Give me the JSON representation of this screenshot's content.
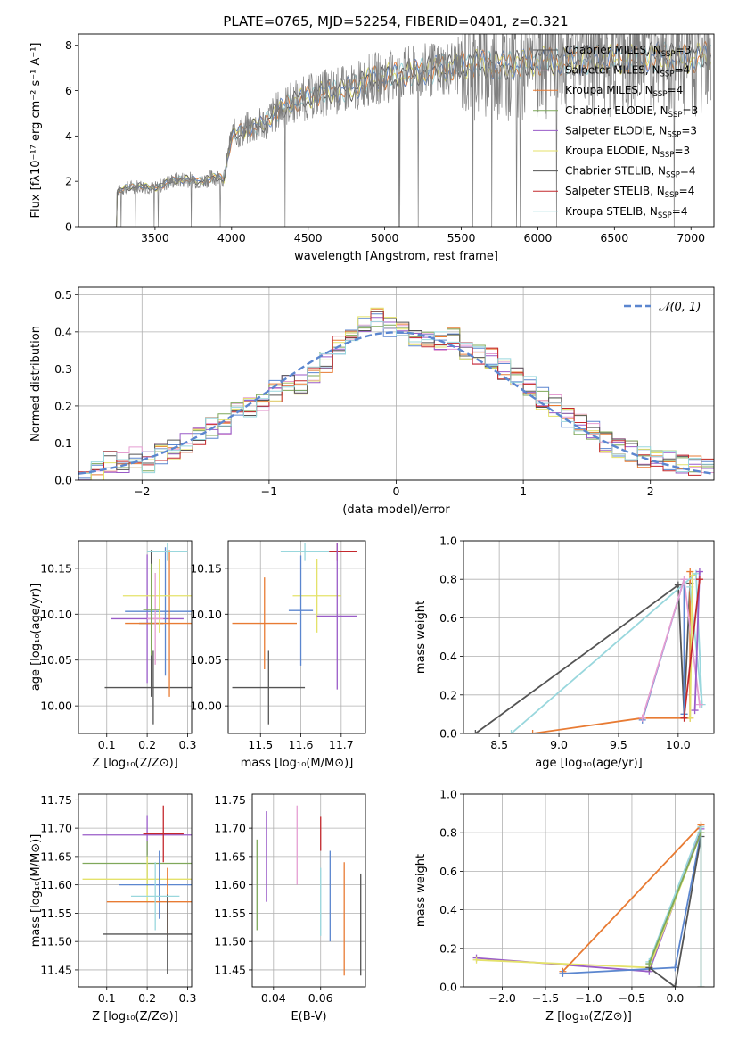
{
  "figure_title": "PLATE=0765, MJD=52254, FIBERID=0401, z=0.321",
  "model_colors": [
    "#5b86cf",
    "#e87b33",
    "#e59ed2",
    "#7fa85a",
    "#9a5cc8",
    "#e4e26a",
    "#545454",
    "#c4282d",
    "#99d7dd",
    "#c36b2f"
  ],
  "chart_data": [
    {
      "id": "spectrum",
      "type": "line",
      "title": "PLATE=0765, MJD=52254, FIBERID=0401, z=0.321",
      "xlabel": "wavelength [Angstrom, rest frame]",
      "ylabel": "Flux [fλ10⁻¹⁷ erg cm⁻² s⁻¹ A⁻¹]",
      "xlim": [
        3000,
        7150
      ],
      "ylim": [
        0,
        8.5
      ],
      "xticks": [
        3500,
        4000,
        4500,
        5000,
        5500,
        6000,
        6500,
        7000
      ],
      "yticks": [
        0,
        2,
        4,
        6,
        8
      ],
      "legend_position": "top-right",
      "legend": [
        {
          "label": "Chabrier MILES, N",
          "sub": "SSP",
          "suffix": "=3",
          "color": "#545454"
        },
        {
          "label": "Salpeter MILES, N",
          "sub": "SSP",
          "suffix": "=4",
          "color": "#e59ed2"
        },
        {
          "label": "Kroupa MILES, N",
          "sub": "SSP",
          "suffix": "=4",
          "color": "#e87b33"
        },
        {
          "label": "Chabrier ELODIE, N",
          "sub": "SSP",
          "suffix": "=3",
          "color": "#7fa85a"
        },
        {
          "label": "Salpeter ELODIE, N",
          "sub": "SSP",
          "suffix": "=3",
          "color": "#9a5cc8"
        },
        {
          "label": "Kroupa ELODIE, N",
          "sub": "SSP",
          "suffix": "=3",
          "color": "#e4e26a"
        },
        {
          "label": "Chabrier STELIB, N",
          "sub": "SSP",
          "suffix": "=4",
          "color": "#545454"
        },
        {
          "label": "Salpeter STELIB, N",
          "sub": "SSP",
          "suffix": "=4",
          "color": "#c4282d"
        },
        {
          "label": "Kroupa STELIB, N",
          "sub": "SSP",
          "suffix": "=4",
          "color": "#99d7dd"
        }
      ],
      "continuum_x": [
        3250,
        3300,
        3400,
        3500,
        3600,
        3700,
        3800,
        3900,
        3950,
        4000,
        4100,
        4200,
        4300,
        4400,
        4500,
        4600,
        4700,
        4800,
        4900,
        5000,
        5200,
        5400,
        5600,
        5800,
        6000,
        6200,
        6400,
        6600,
        6800,
        7000,
        7100
      ],
      "continuum_y": [
        1.5,
        1.7,
        1.8,
        1.7,
        2.0,
        2.1,
        2.0,
        2.2,
        2.1,
        4.0,
        4.3,
        4.5,
        5.1,
        5.5,
        5.7,
        5.9,
        6.0,
        6.1,
        6.5,
        6.6,
        6.8,
        7.0,
        7.2,
        7.1,
        7.3,
        7.3,
        7.4,
        7.4,
        7.5,
        7.4,
        7.5
      ]
    },
    {
      "id": "residuals",
      "type": "line",
      "xlabel": "(data-model)/error",
      "ylabel": "Normed distribution",
      "xlim": [
        -2.5,
        2.5
      ],
      "ylim": [
        0,
        0.52
      ],
      "xticks": [
        -2,
        -1,
        0,
        1,
        2
      ],
      "yticks": [
        0.0,
        0.1,
        0.2,
        0.3,
        0.4,
        0.5
      ],
      "legend_position": "top-right",
      "legend": [
        {
          "label": "𝒩(0, 1)",
          "color": "#5b86cf",
          "dashed": true
        }
      ],
      "hist_x": [
        -2.5,
        -2.4,
        -2.3,
        -2.2,
        -2.1,
        -2.0,
        -1.9,
        -1.8,
        -1.7,
        -1.6,
        -1.5,
        -1.4,
        -1.3,
        -1.2,
        -1.1,
        -1.0,
        -0.9,
        -0.8,
        -0.7,
        -0.6,
        -0.5,
        -0.4,
        -0.3,
        -0.2,
        -0.1,
        0.0,
        0.1,
        0.2,
        0.3,
        0.4,
        0.5,
        0.6,
        0.7,
        0.8,
        0.9,
        1.0,
        1.1,
        1.2,
        1.3,
        1.4,
        1.5,
        1.6,
        1.7,
        1.8,
        1.9,
        2.0,
        2.1,
        2.2,
        2.3,
        2.4
      ],
      "hist_y": [
        0.02,
        0.02,
        0.05,
        0.05,
        0.06,
        0.05,
        0.07,
        0.08,
        0.1,
        0.12,
        0.14,
        0.15,
        0.18,
        0.2,
        0.21,
        0.24,
        0.27,
        0.26,
        0.28,
        0.32,
        0.36,
        0.38,
        0.42,
        0.44,
        0.41,
        0.4,
        0.39,
        0.38,
        0.37,
        0.38,
        0.35,
        0.34,
        0.33,
        0.3,
        0.28,
        0.25,
        0.22,
        0.2,
        0.17,
        0.15,
        0.13,
        0.1,
        0.09,
        0.08,
        0.06,
        0.06,
        0.05,
        0.04,
        0.04,
        0.04
      ]
    },
    {
      "id": "age-vs-Z",
      "type": "scatter",
      "xlabel": "Z [log₁₀(Z/Z⊙)]",
      "ylabel": "age  [log₁₀(age/yr)]",
      "xlim": [
        0.03,
        0.31
      ],
      "ylim": [
        9.97,
        10.18
      ],
      "xticks": [
        0.1,
        0.2,
        0.3
      ],
      "yticks": [
        10.0,
        10.05,
        10.1,
        10.15
      ],
      "points": [
        {
          "x": 0.2,
          "y": 10.095,
          "xerr": 0.09,
          "yerr": 0.07,
          "color": "#9a5cc8"
        },
        {
          "x": 0.21,
          "y": 10.09,
          "xerr": 0.03,
          "yerr": 0.08,
          "color": "#545454"
        },
        {
          "x": 0.215,
          "y": 10.02,
          "xerr": 0.12,
          "yerr": 0.04,
          "color": "#545454"
        },
        {
          "x": 0.245,
          "y": 10.103,
          "xerr": 0.1,
          "yerr": 0.07,
          "color": "#5b86cf"
        },
        {
          "x": 0.255,
          "y": 10.09,
          "xerr": 0.11,
          "yerr": 0.08,
          "color": "#e87b33"
        },
        {
          "x": 0.25,
          "y": 10.168,
          "xerr": 0.05,
          "yerr": 0.01,
          "color": "#99d7dd"
        },
        {
          "x": 0.23,
          "y": 10.12,
          "xerr": 0.09,
          "yerr": 0.04,
          "color": "#e4e26a"
        },
        {
          "x": 0.22,
          "y": 10.095,
          "xerr": 0.02,
          "yerr": 0.05,
          "color": "#e59ed2"
        },
        {
          "x": 0.21,
          "y": 10.105,
          "xerr": 0.02,
          "yerr": 0.05,
          "color": "#7fa85a"
        }
      ]
    },
    {
      "id": "age-vs-mass",
      "type": "scatter",
      "xlabel": "mass [log₁₀(M/M⊙)]",
      "ylabel": "",
      "xlim": [
        11.42,
        11.76
      ],
      "ylim": [
        9.97,
        10.18
      ],
      "xticks": [
        11.5,
        11.6,
        11.7
      ],
      "yticks": [
        10.0,
        10.05,
        10.1,
        10.15
      ],
      "points": [
        {
          "x": 11.69,
          "y": 10.168,
          "xerr": 0.05,
          "yerr": 0.01,
          "color": "#c4282d"
        },
        {
          "x": 11.61,
          "y": 10.168,
          "xerr": 0.06,
          "yerr": 0.01,
          "color": "#99d7dd"
        },
        {
          "x": 11.64,
          "y": 10.12,
          "xerr": 0.06,
          "yerr": 0.04,
          "color": "#e4e26a"
        },
        {
          "x": 11.69,
          "y": 10.098,
          "xerr": 0.05,
          "yerr": 0.08,
          "color": "#9a5cc8"
        },
        {
          "x": 11.51,
          "y": 10.09,
          "xerr": 0.08,
          "yerr": 0.05,
          "color": "#e87b33"
        },
        {
          "x": 11.52,
          "y": 10.02,
          "xerr": 0.09,
          "yerr": 0.04,
          "color": "#545454"
        },
        {
          "x": 11.6,
          "y": 10.104,
          "xerr": 0.03,
          "yerr": 0.06,
          "color": "#5b86cf"
        }
      ]
    },
    {
      "id": "weight-vs-age",
      "type": "line",
      "xlabel": "age  [log₁₀(age/yr)]",
      "ylabel": "mass weight",
      "xlim": [
        8.2,
        10.3
      ],
      "ylim": [
        0,
        1.0
      ],
      "xticks": [
        8.5,
        9.0,
        9.5,
        10.0
      ],
      "yticks": [
        0.0,
        0.2,
        0.4,
        0.6,
        0.8,
        1.0
      ],
      "series": [
        {
          "color": "#545454",
          "x": [
            8.3,
            10.0,
            10.05,
            10.1
          ],
          "y": [
            0.0,
            0.77,
            0.1,
            0.78
          ]
        },
        {
          "color": "#e87b33",
          "x": [
            8.78,
            9.7,
            10.1,
            10.1
          ],
          "y": [
            0.0,
            0.08,
            0.08,
            0.84
          ]
        },
        {
          "color": "#5b86cf",
          "x": [
            9.7,
            10.05,
            10.05
          ],
          "y": [
            0.07,
            0.8,
            0.1
          ]
        },
        {
          "color": "#99d7dd",
          "x": [
            8.6,
            10.15,
            10.2,
            10.1
          ],
          "y": [
            0.0,
            0.83,
            0.15,
            0.76
          ]
        },
        {
          "color": "#e59ed2",
          "x": [
            9.7,
            10.05,
            10.18
          ],
          "y": [
            0.08,
            0.8,
            0.15
          ]
        },
        {
          "color": "#e4e26a",
          "x": [
            10.1,
            10.12
          ],
          "y": [
            0.08,
            0.82
          ]
        },
        {
          "color": "#9a5cc8",
          "x": [
            10.14,
            10.18
          ],
          "y": [
            0.12,
            0.84
          ]
        },
        {
          "color": "#c4282d",
          "x": [
            10.05,
            10.18
          ],
          "y": [
            0.08,
            0.8
          ]
        }
      ]
    },
    {
      "id": "mass-vs-Z",
      "type": "scatter",
      "xlabel": "Z [log₁₀(Z/Z⊙)]",
      "ylabel": "mass [log₁₀(M/M⊙)]",
      "xlim": [
        0.03,
        0.31
      ],
      "ylim": [
        11.42,
        11.76
      ],
      "xticks": [
        0.1,
        0.2,
        0.3
      ],
      "yticks": [
        11.45,
        11.5,
        11.55,
        11.6,
        11.65,
        11.7,
        11.75
      ],
      "points": [
        {
          "x": 0.2,
          "y": 11.688,
          "xerr": 0.16,
          "yerr": 0.035,
          "color": "#9a5cc8"
        },
        {
          "x": 0.24,
          "y": 11.69,
          "xerr": 0.05,
          "yerr": 0.05,
          "color": "#c4282d"
        },
        {
          "x": 0.2,
          "y": 11.638,
          "xerr": 0.16,
          "yerr": 0.04,
          "color": "#7fa85a"
        },
        {
          "x": 0.2,
          "y": 11.61,
          "xerr": 0.16,
          "yerr": 0.04,
          "color": "#e4e26a"
        },
        {
          "x": 0.23,
          "y": 11.6,
          "xerr": 0.1,
          "yerr": 0.06,
          "color": "#5b86cf"
        },
        {
          "x": 0.25,
          "y": 11.57,
          "xerr": 0.15,
          "yerr": 0.06,
          "color": "#e87b33"
        },
        {
          "x": 0.25,
          "y": 11.513,
          "xerr": 0.16,
          "yerr": 0.07,
          "color": "#545454"
        },
        {
          "x": 0.22,
          "y": 11.58,
          "xerr": 0.06,
          "yerr": 0.06,
          "color": "#99d7dd"
        }
      ]
    },
    {
      "id": "mass-vs-EBV",
      "type": "scatter",
      "xlabel": "E(B-V)",
      "ylabel": "",
      "xlim": [
        0.031,
        0.079
      ],
      "ylim": [
        11.42,
        11.76
      ],
      "xticks": [
        0.04,
        0.06
      ],
      "yticks": [
        11.45,
        11.5,
        11.55,
        11.6,
        11.65,
        11.7,
        11.75
      ],
      "points": [
        {
          "x": 0.033,
          "y": 11.6,
          "xerr": 0,
          "yerr": 0.08,
          "color": "#7fa85a"
        },
        {
          "x": 0.037,
          "y": 11.65,
          "xerr": 0,
          "yerr": 0.08,
          "color": "#9a5cc8"
        },
        {
          "x": 0.05,
          "y": 11.67,
          "xerr": 0,
          "yerr": 0.07,
          "color": "#e59ed2"
        },
        {
          "x": 0.06,
          "y": 11.69,
          "xerr": 0,
          "yerr": 0.03,
          "color": "#c4282d"
        },
        {
          "x": 0.064,
          "y": 11.58,
          "xerr": 0,
          "yerr": 0.08,
          "color": "#5b86cf"
        },
        {
          "x": 0.07,
          "y": 11.54,
          "xerr": 0,
          "yerr": 0.1,
          "color": "#e87b33"
        },
        {
          "x": 0.077,
          "y": 11.53,
          "xerr": 0,
          "yerr": 0.09,
          "color": "#545454"
        },
        {
          "x": 0.06,
          "y": 11.57,
          "xerr": 0,
          "yerr": 0.06,
          "color": "#99d7dd"
        }
      ]
    },
    {
      "id": "weight-vs-Z",
      "type": "line",
      "xlabel": "Z [log₁₀(Z/Z⊙)]",
      "ylabel": "mass weight",
      "xlim": [
        -2.45,
        0.45
      ],
      "ylim": [
        0,
        1.0
      ],
      "xticks": [
        -2.0,
        -1.5,
        -1.0,
        -0.5,
        0.0
      ],
      "yticks": [
        0.0,
        0.2,
        0.4,
        0.6,
        0.8,
        1.0
      ],
      "series": [
        {
          "color": "#9a5cc8",
          "x": [
            -2.3,
            -0.3,
            0.3
          ],
          "y": [
            0.15,
            0.08,
            0.82
          ]
        },
        {
          "color": "#e4e26a",
          "x": [
            -2.3,
            -0.3,
            0.3
          ],
          "y": [
            0.14,
            0.1,
            0.8
          ]
        },
        {
          "color": "#e87b33",
          "x": [
            -1.3,
            0.3,
            0.3
          ],
          "y": [
            0.08,
            0.84,
            0.0
          ]
        },
        {
          "color": "#5b86cf",
          "x": [
            -1.3,
            0.0,
            0.3
          ],
          "y": [
            0.07,
            0.1,
            0.8
          ]
        },
        {
          "color": "#545454",
          "x": [
            -0.3,
            0.0,
            0.3
          ],
          "y": [
            0.1,
            0.0,
            0.78
          ]
        },
        {
          "color": "#99d7dd",
          "x": [
            -0.3,
            0.3,
            0.3
          ],
          "y": [
            0.13,
            0.83,
            0.0
          ]
        },
        {
          "color": "#7fa85a",
          "x": [
            -0.3,
            0.3
          ],
          "y": [
            0.12,
            0.8
          ]
        }
      ]
    }
  ]
}
